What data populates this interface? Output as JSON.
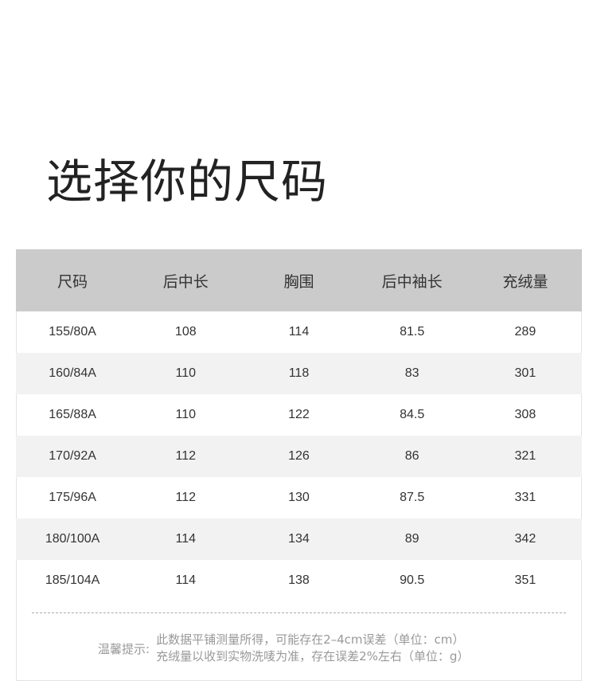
{
  "title": "选择你的尺码",
  "table": {
    "headers": [
      "尺码",
      "后中长",
      "胸围",
      "后中袖长",
      "充绒量"
    ],
    "rows": [
      [
        "155/80A",
        "108",
        "114",
        "81.5",
        "289"
      ],
      [
        "160/84A",
        "110",
        "118",
        "83",
        "301"
      ],
      [
        "165/88A",
        "110",
        "122",
        "84.5",
        "308"
      ],
      [
        "170/92A",
        "112",
        "126",
        "86",
        "321"
      ],
      [
        "175/96A",
        "112",
        "130",
        "87.5",
        "331"
      ],
      [
        "180/100A",
        "114",
        "134",
        "89",
        "342"
      ],
      [
        "185/104A",
        "114",
        "138",
        "90.5",
        "351"
      ]
    ]
  },
  "note": {
    "label": "温馨提示:",
    "lines": [
      "此数据平铺测量所得，可能存在2–4cm误差（单位：cm）",
      "充绒量以收到实物洗唛为准，存在误差2%左右（单位：g）"
    ]
  }
}
